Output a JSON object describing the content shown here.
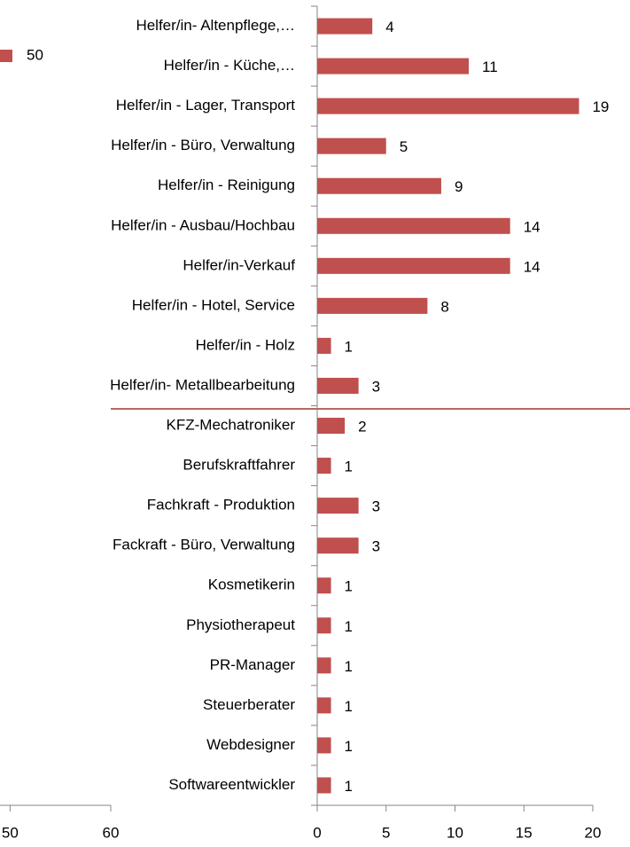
{
  "chart_data": [
    {
      "type": "bar",
      "orientation": "horizontal",
      "categories": [
        "Helfer/in- Altenpflege,…",
        "Helfer/in - Küche,…",
        "Helfer/in - Lager, Transport",
        "Helfer/in - Büro, Verwaltung",
        "Helfer/in - Reinigung",
        "Helfer/in - Ausbau/Hochbau",
        "Helfer/in-Verkauf",
        "Helfer/in - Hotel, Service",
        "Helfer/in - Holz",
        "Helfer/in- Metallbearbeitung",
        "KFZ-Mechatroniker",
        "Berufskraftfahrer",
        "Fachkraft - Produktion",
        "Fackraft - Büro, Verwaltung",
        "Kosmetikerin",
        "Physiotherapeut",
        "PR-Manager",
        "Steuerberater",
        "Webdesigner",
        "Softwareentwickler"
      ],
      "values": [
        4,
        11,
        19,
        5,
        9,
        14,
        14,
        8,
        1,
        3,
        2,
        1,
        3,
        3,
        1,
        1,
        1,
        1,
        1,
        1
      ],
      "color": "#c0504d",
      "xlim": [
        0,
        20
      ],
      "xticks": [
        0,
        5,
        10,
        15,
        20
      ]
    },
    {
      "type": "bar",
      "orientation": "horizontal",
      "series": [
        {
          "name": "50",
          "color": "#c0504d",
          "values": []
        }
      ],
      "xlim": [
        49,
        60
      ],
      "xticks": [
        50,
        60
      ]
    }
  ]
}
